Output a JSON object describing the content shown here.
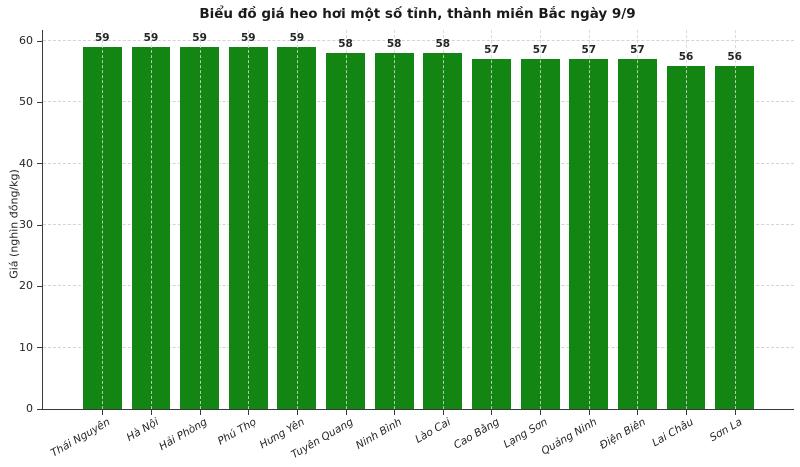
{
  "page": {
    "background": "#ffffff"
  },
  "chart_data": {
    "type": "bar",
    "title": "Biểu đồ giá heo hơi một số tỉnh, thành miền Bắc ngày 9/9",
    "xlabel": "",
    "ylabel": "Giá (nghìn đồng/kg)",
    "categories": [
      "Thái Nguyên",
      "Hà Nội",
      "Hải Phòng",
      "Phú Thọ",
      "Hưng Yên",
      "Tuyên Quang",
      "Ninh Bình",
      "Lào Cai",
      "Cao Bằng",
      "Lạng Sơn",
      "Quảng Ninh",
      "Điện Biên",
      "Lai Châu",
      "Sơn La"
    ],
    "values": [
      59,
      59,
      59,
      59,
      59,
      58,
      58,
      58,
      57,
      57,
      57,
      57,
      56,
      56
    ],
    "yticks": [
      0,
      10,
      20,
      30,
      40,
      50,
      60
    ],
    "ylim": [
      0,
      60
    ],
    "grid": true,
    "grid_style": "dashed",
    "bar_labels_shown": true,
    "legend_position": "none"
  },
  "colors": {
    "bar": "#128512",
    "grid": "#d4d4d4",
    "axis": "#3a3a3a",
    "text": "#262626",
    "title": "#1a1a1a",
    "background": "#ffffff"
  }
}
